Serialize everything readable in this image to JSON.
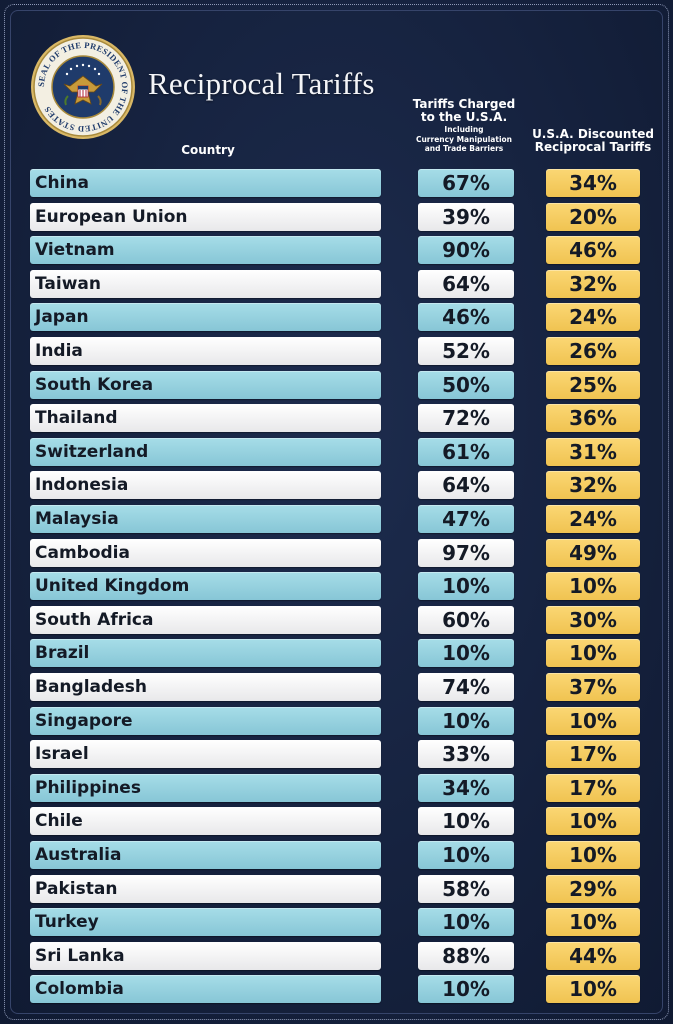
{
  "title": "Reciprocal Tariffs",
  "seal": {
    "text_top": "SEAL OF THE PRESIDENT OF THE UNITED STATES",
    "icon": "presidential-seal"
  },
  "headers": {
    "country": "Country",
    "charged_line1": "Tariffs Charged",
    "charged_line2": "to the U.S.A.",
    "charged_sub1": "Including",
    "charged_sub2": "Currency Manipulation",
    "charged_sub3": "and Trade Barriers",
    "discounted_line1": "U.S.A. Discounted",
    "discounted_line2": "Reciprocal Tariffs"
  },
  "colors": {
    "background": "#16223d",
    "row_blue": "#9fd6e3",
    "row_white": "#f4f4f5",
    "tariff_yellow": "#f6cc5e"
  },
  "chart_data": {
    "type": "table",
    "title": "Reciprocal Tariffs",
    "columns": [
      "Country",
      "Tariffs Charged to the U.S.A. Including Currency Manipulation and Trade Barriers",
      "U.S.A. Discounted Reciprocal Tariffs"
    ],
    "rows": [
      {
        "country": "China",
        "charged": "67%",
        "discounted": "34%"
      },
      {
        "country": "European Union",
        "charged": "39%",
        "discounted": "20%"
      },
      {
        "country": "Vietnam",
        "charged": "90%",
        "discounted": "46%"
      },
      {
        "country": "Taiwan",
        "charged": "64%",
        "discounted": "32%"
      },
      {
        "country": "Japan",
        "charged": "46%",
        "discounted": "24%"
      },
      {
        "country": "India",
        "charged": "52%",
        "discounted": "26%"
      },
      {
        "country": "South Korea",
        "charged": "50%",
        "discounted": "25%"
      },
      {
        "country": "Thailand",
        "charged": "72%",
        "discounted": "36%"
      },
      {
        "country": "Switzerland",
        "charged": "61%",
        "discounted": "31%"
      },
      {
        "country": "Indonesia",
        "charged": "64%",
        "discounted": "32%"
      },
      {
        "country": "Malaysia",
        "charged": "47%",
        "discounted": "24%"
      },
      {
        "country": "Cambodia",
        "charged": "97%",
        "discounted": "49%"
      },
      {
        "country": "United Kingdom",
        "charged": "10%",
        "discounted": "10%"
      },
      {
        "country": "South Africa",
        "charged": "60%",
        "discounted": "30%"
      },
      {
        "country": "Brazil",
        "charged": "10%",
        "discounted": "10%"
      },
      {
        "country": "Bangladesh",
        "charged": "74%",
        "discounted": "37%"
      },
      {
        "country": "Singapore",
        "charged": "10%",
        "discounted": "10%"
      },
      {
        "country": "Israel",
        "charged": "33%",
        "discounted": "17%"
      },
      {
        "country": "Philippines",
        "charged": "34%",
        "discounted": "17%"
      },
      {
        "country": "Chile",
        "charged": "10%",
        "discounted": "10%"
      },
      {
        "country": "Australia",
        "charged": "10%",
        "discounted": "10%"
      },
      {
        "country": "Pakistan",
        "charged": "58%",
        "discounted": "29%"
      },
      {
        "country": "Turkey",
        "charged": "10%",
        "discounted": "10%"
      },
      {
        "country": "Sri Lanka",
        "charged": "88%",
        "discounted": "44%"
      },
      {
        "country": "Colombia",
        "charged": "10%",
        "discounted": "10%"
      }
    ]
  }
}
